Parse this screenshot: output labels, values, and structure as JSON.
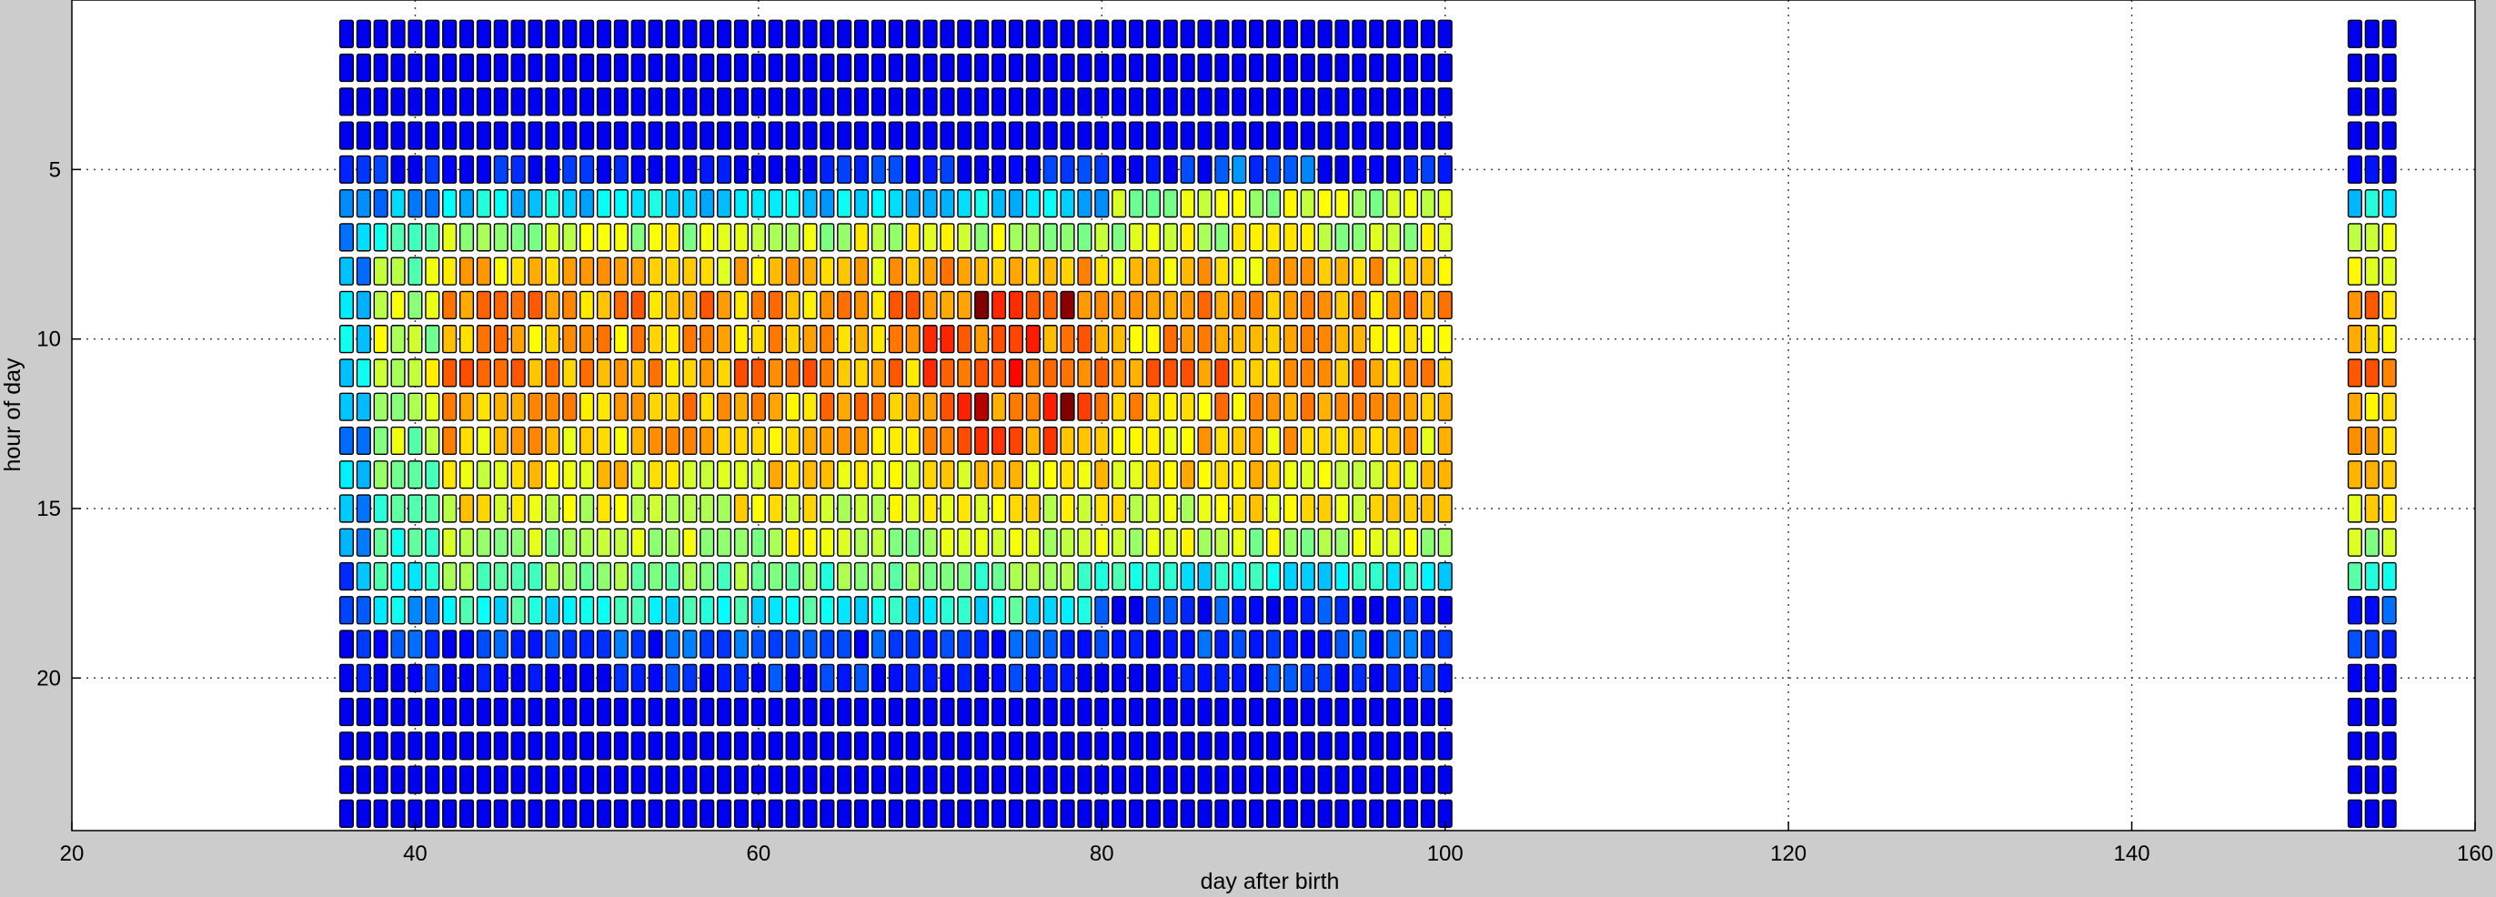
{
  "chart_data": {
    "type": "heatmap",
    "title": "",
    "xlabel": "day after birth",
    "ylabel": "hour of day",
    "xlim": [
      20,
      160
    ],
    "ylim": [
      24.5,
      0
    ],
    "y_reversed": true,
    "x_ticks": [
      20,
      40,
      60,
      80,
      100,
      120,
      140,
      160
    ],
    "y_ticks": [
      5,
      10,
      15,
      20
    ],
    "grid": "dotted",
    "legend": "none",
    "colormap": "jet",
    "color_range": [
      0,
      10
    ],
    "day_groups": [
      {
        "days": [
          36,
          100
        ],
        "note": "continuous block"
      },
      {
        "days": [
          153,
          155
        ]
      }
    ],
    "hours_visible": [
      1,
      24
    ],
    "hour_intensity_profile": {
      "1": 0,
      "2": 0,
      "3": 0,
      "4": 0,
      "5": 0.2,
      "6": 2.5,
      "7": 5.2,
      "8": 6.3,
      "9": 6.8,
      "10": 6.6,
      "11": 6.9,
      "12": 6.6,
      "13": 6.4,
      "14": 6.0,
      "15": 5.6,
      "16": 5.1,
      "17": 4.2,
      "18": 3.2,
      "19": 0.8,
      "20": 0.3,
      "21": 0,
      "22": 0,
      "23": 0,
      "24": 0
    },
    "notes_on_values": "Cell values are read approximately from colour; intensity peaks around hours 8-13 between days 70 and 80 (dark red at day 73, hour 12)."
  }
}
